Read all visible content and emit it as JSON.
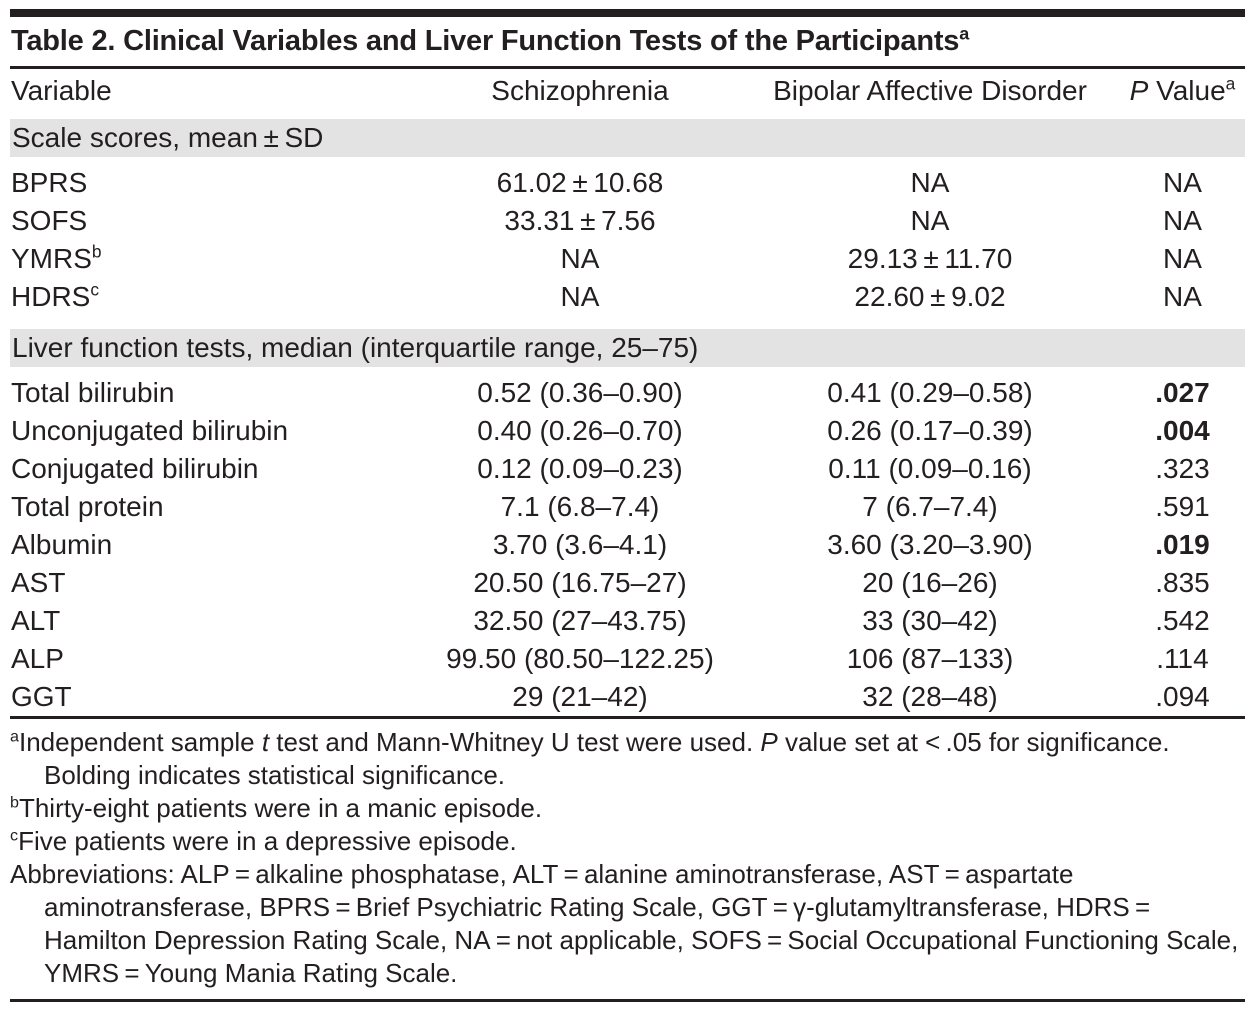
{
  "title": {
    "text": "Table 2. Clinical Variables and Liver Function Tests of the Participants",
    "sup": "a"
  },
  "colors": {
    "text": "#231f20",
    "section_band": "#e3e3e3",
    "rule": "#231f20",
    "background": "#ffffff"
  },
  "table": {
    "headers": [
      {
        "text": "Variable"
      },
      {
        "text": "Schizophrenia"
      },
      {
        "text": "Bipolar Affective Disorder"
      },
      {
        "italic": "P",
        "text": " Value",
        "sup": "a"
      }
    ],
    "rows": [
      {
        "type": "section",
        "label": "Scale scores, mean ± SD",
        "first": true
      },
      {
        "type": "data",
        "variable": {
          "text": "BPRS"
        },
        "cells": [
          "61.02 ± 10.68",
          "NA",
          "NA"
        ],
        "p_bold": false
      },
      {
        "type": "data",
        "variable": {
          "text": "SOFS"
        },
        "cells": [
          "33.31 ± 7.56",
          "NA",
          "NA"
        ],
        "p_bold": false
      },
      {
        "type": "data",
        "variable": {
          "text": "YMRS",
          "sup": "b"
        },
        "cells": [
          "NA",
          "29.13 ± 11.70",
          "NA"
        ],
        "p_bold": false
      },
      {
        "type": "data",
        "variable": {
          "text": "HDRS",
          "sup": "c"
        },
        "cells": [
          "NA",
          "22.60 ± 9.02",
          "NA"
        ],
        "p_bold": false
      },
      {
        "type": "section",
        "label": "Liver function tests, median (interquartile range, 25–75)",
        "first": false
      },
      {
        "type": "data",
        "variable": {
          "text": "Total bilirubin"
        },
        "cells": [
          "0.52 (0.36–0.90)",
          "0.41 (0.29–0.58)",
          ".027"
        ],
        "p_bold": true
      },
      {
        "type": "data",
        "variable": {
          "text": "Unconjugated bilirubin"
        },
        "cells": [
          "0.40 (0.26–0.70)",
          "0.26 (0.17–0.39)",
          ".004"
        ],
        "p_bold": true
      },
      {
        "type": "data",
        "variable": {
          "text": "Conjugated bilirubin"
        },
        "cells": [
          "0.12 (0.09–0.23)",
          "0.11 (0.09–0.16)",
          ".323"
        ],
        "p_bold": false
      },
      {
        "type": "data",
        "variable": {
          "text": "Total protein"
        },
        "cells": [
          "7.1 (6.8–7.4)",
          "7 (6.7–7.4)",
          ".591"
        ],
        "p_bold": false
      },
      {
        "type": "data",
        "variable": {
          "text": "Albumin"
        },
        "cells": [
          "3.70 (3.6–4.1)",
          "3.60 (3.20–3.90)",
          ".019"
        ],
        "p_bold": true
      },
      {
        "type": "data",
        "variable": {
          "text": "AST"
        },
        "cells": [
          "20.50 (16.75–27)",
          "20 (16–26)",
          ".835"
        ],
        "p_bold": false
      },
      {
        "type": "data",
        "variable": {
          "text": "ALT"
        },
        "cells": [
          "32.50 (27–43.75)",
          "33 (30–42)",
          ".542"
        ],
        "p_bold": false
      },
      {
        "type": "data",
        "variable": {
          "text": "ALP"
        },
        "cells": [
          "99.50 (80.50–122.25)",
          "106 (87–133)",
          ".114"
        ],
        "p_bold": false
      },
      {
        "type": "data",
        "variable": {
          "text": "GGT"
        },
        "cells": [
          "29 (21–42)",
          "32 (28–48)",
          ".094"
        ],
        "p_bold": false
      }
    ]
  },
  "footnotes": [
    {
      "marker": "a",
      "parts": [
        {
          "text": "Independent sample "
        },
        {
          "text": "t",
          "italic": true
        },
        {
          "text": " test and Mann-Whitney U test were used. "
        },
        {
          "text": "P",
          "italic": true
        },
        {
          "text": " value set at < .05 for significance. Bolding indicates statistical significance."
        }
      ]
    },
    {
      "marker": "b",
      "parts": [
        {
          "text": "Thirty-eight patients were in a manic episode."
        }
      ]
    },
    {
      "marker": "c",
      "parts": [
        {
          "text": "Five patients were in a depressive episode."
        }
      ]
    },
    {
      "marker": "",
      "parts": [
        {
          "text": "Abbreviations: ALP = alkaline phosphatase, ALT = alanine aminotransferase, AST = aspartate aminotransferase, BPRS = Brief Psychiatric Rating Scale, GGT = γ-glutamyltransferase, HDRS = Hamilton Depression Rating Scale, NA = not applicable, SOFS = Social Occupational Functioning Scale, YMRS = Young Mania Rating Scale."
        }
      ]
    }
  ]
}
